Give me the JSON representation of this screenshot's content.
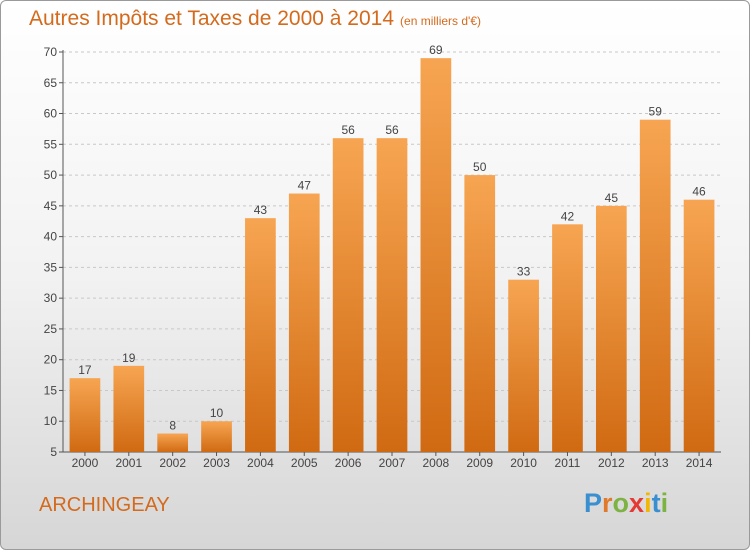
{
  "title": "Autres Impôts et Taxes de 2000 à 2014",
  "unit_label": "(en milliers d'€)",
  "commune": "ARCHINGEAY",
  "logo": {
    "letters": [
      "P",
      "r",
      "o",
      "x",
      "i",
      "t",
      "i"
    ],
    "colors": [
      "#3a8fd0",
      "#e07a2a",
      "#7cb342",
      "#e53935",
      "#f2b705",
      "#3a8fd0",
      "#7cb342"
    ]
  },
  "colors": {
    "bar_top": "#f7a552",
    "bar_bottom": "#d06a12",
    "accent": "#d46a1c"
  },
  "chart_data": {
    "type": "bar",
    "title": "Autres Impôts et Taxes de 2000 à 2014",
    "categories": [
      "2000",
      "2001",
      "2002",
      "2003",
      "2004",
      "2005",
      "2006",
      "2007",
      "2008",
      "2009",
      "2010",
      "2011",
      "2012",
      "2013",
      "2014"
    ],
    "values": [
      17,
      19,
      8,
      10,
      43,
      47,
      56,
      56,
      69,
      50,
      33,
      42,
      45,
      59,
      46
    ],
    "ylim": [
      5,
      70
    ],
    "yticks": [
      5,
      10,
      15,
      20,
      25,
      30,
      35,
      40,
      45,
      50,
      55,
      60,
      65,
      70
    ],
    "grid": true,
    "xlabel": "",
    "ylabel": ""
  }
}
